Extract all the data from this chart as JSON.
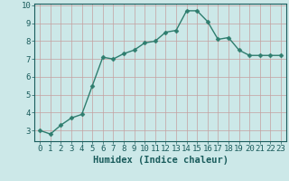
{
  "x": [
    0,
    1,
    2,
    3,
    4,
    5,
    6,
    7,
    8,
    9,
    10,
    11,
    12,
    13,
    14,
    15,
    16,
    17,
    18,
    19,
    20,
    21,
    22,
    23
  ],
  "y": [
    3.0,
    2.8,
    3.3,
    3.7,
    3.9,
    5.5,
    7.1,
    7.0,
    7.3,
    7.5,
    7.9,
    8.0,
    8.5,
    8.6,
    9.7,
    9.7,
    9.1,
    8.1,
    8.2,
    7.5,
    7.2,
    7.2,
    7.2,
    7.2
  ],
  "line_color": "#2e7d6e",
  "marker_color": "#2e7d6e",
  "bg_color": "#cce8e8",
  "grid_color": "#c4a0a0",
  "axis_label_color": "#1a5c5c",
  "tick_label_color": "#1a5c5c",
  "spine_color": "#1a5c5c",
  "xlabel": "Humidex (Indice chaleur)",
  "ylim": [
    2.4,
    10.1
  ],
  "xlim": [
    -0.5,
    23.5
  ],
  "yticks": [
    3,
    4,
    5,
    6,
    7,
    8,
    9,
    10
  ],
  "xticks": [
    0,
    1,
    2,
    3,
    4,
    5,
    6,
    7,
    8,
    9,
    10,
    11,
    12,
    13,
    14,
    15,
    16,
    17,
    18,
    19,
    20,
    21,
    22,
    23
  ],
  "xlabel_fontsize": 7.5,
  "tick_fontsize": 6.5,
  "linewidth": 1.0,
  "markersize": 2.5
}
